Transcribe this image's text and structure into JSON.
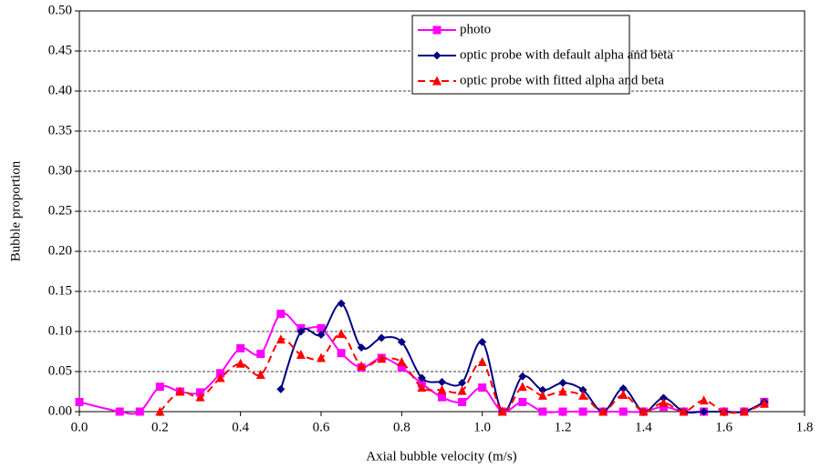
{
  "chart_data": {
    "type": "line",
    "xlabel": "Axial bubble velocity (m/s)",
    "ylabel": "Bubble proportion",
    "xlim": [
      0,
      1.8
    ],
    "ylim": [
      0,
      0.5
    ],
    "xticks": [
      {
        "value": 0,
        "label": "0.0"
      },
      0.2,
      0.4,
      0.6,
      0.8,
      {
        "value": 1,
        "label": "1.0"
      },
      1.2,
      1.4,
      1.6,
      1.8
    ],
    "yticks": [
      {
        "value": 0,
        "label": "0.00"
      },
      0.05,
      {
        "value": 0.1,
        "label": "0.10"
      },
      0.15,
      {
        "value": 0.2,
        "label": "0.20"
      },
      0.25,
      {
        "value": 0.3,
        "label": "0.30"
      },
      0.35,
      {
        "value": 0.4,
        "label": "0.40"
      },
      0.45,
      {
        "value": 0.5,
        "label": "0.50"
      }
    ],
    "grid": true,
    "legend": "upper right",
    "series": [
      {
        "name": "photo",
        "color": "#ff00ff",
        "marker": "square",
        "dashed": false,
        "x": [
          0,
          0.1,
          0.15,
          0.2,
          0.25,
          0.3,
          0.35,
          0.4,
          0.45,
          0.5,
          0.55,
          0.6,
          0.65,
          0.7,
          0.75,
          0.8,
          0.85,
          0.9,
          0.95,
          1.0,
          1.05,
          1.1,
          1.15,
          1.2,
          1.25,
          1.3,
          1.35,
          1.4,
          1.45,
          1.5,
          1.55,
          1.6,
          1.65,
          1.7
        ],
        "values": [
          0.012,
          0,
          0,
          0.031,
          0.025,
          0.024,
          0.048,
          0.079,
          0.072,
          0.122,
          0.104,
          0.104,
          0.073,
          0.055,
          0.067,
          0.055,
          0.035,
          0.018,
          0.012,
          0.03,
          0,
          0.012,
          0,
          0,
          0,
          0,
          0,
          0,
          0.006,
          0,
          0,
          0,
          0,
          0.012
        ]
      },
      {
        "name": "optic probe with default alpha and beta",
        "color": "#000080",
        "marker": "diamond",
        "dashed": false,
        "x": [
          0.5,
          0.55,
          0.6,
          0.65,
          0.7,
          0.75,
          0.8,
          0.85,
          0.9,
          0.95,
          1.0,
          1.05,
          1.1,
          1.15,
          1.2,
          1.25,
          1.3,
          1.35,
          1.4,
          1.45,
          1.5,
          1.55,
          1.6,
          1.65,
          1.7
        ],
        "values": [
          0.028,
          0.1,
          0.096,
          0.135,
          0.08,
          0.092,
          0.087,
          0.042,
          0.037,
          0.036,
          0.087,
          0,
          0.044,
          0.027,
          0.036,
          0.027,
          0,
          0.029,
          0,
          0.017,
          0,
          0,
          0,
          0,
          0.012
        ]
      },
      {
        "name": "optic probe with fitted alpha and beta",
        "color": "#ff0000",
        "marker": "triangle",
        "dashed": true,
        "x": [
          0.2,
          0.25,
          0.3,
          0.35,
          0.4,
          0.45,
          0.5,
          0.55,
          0.6,
          0.65,
          0.7,
          0.75,
          0.8,
          0.85,
          0.9,
          0.95,
          1.0,
          1.05,
          1.1,
          1.15,
          1.2,
          1.25,
          1.3,
          1.35,
          1.4,
          1.45,
          1.5,
          1.55,
          1.6,
          1.65,
          1.7
        ],
        "values": [
          0,
          0.025,
          0.018,
          0.042,
          0.06,
          0.046,
          0.09,
          0.071,
          0.067,
          0.097,
          0.057,
          0.066,
          0.062,
          0.03,
          0.027,
          0.026,
          0.062,
          0,
          0.031,
          0.02,
          0.025,
          0.02,
          0,
          0.021,
          0,
          0.011,
          0,
          0.014,
          0,
          0,
          0.01
        ]
      }
    ]
  }
}
